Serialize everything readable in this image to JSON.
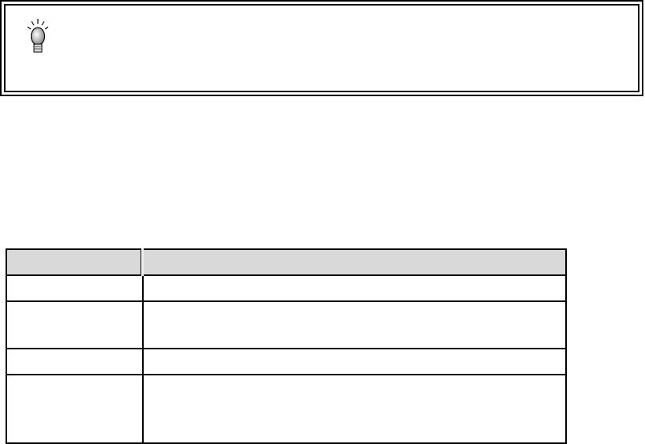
{
  "note": {
    "icon": "lightbulb-icon",
    "text": ""
  },
  "table": {
    "header_background": "#d9d9d9",
    "headers": [
      "",
      ""
    ],
    "rows": [
      [
        "",
        ""
      ],
      [
        "",
        ""
      ],
      [
        "",
        ""
      ],
      [
        "",
        ""
      ]
    ]
  }
}
